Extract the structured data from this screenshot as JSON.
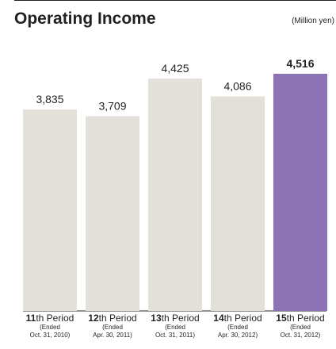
{
  "chart_data": {
    "type": "bar",
    "title": "Operating Income",
    "unit": "(Million yen)",
    "categories": [
      {
        "num": "11",
        "suffix": "th Period",
        "sub1": "(Ended",
        "sub2": "Oct. 31, 2010)"
      },
      {
        "num": "12",
        "suffix": "th Period",
        "sub1": "(Ended",
        "sub2": "Apr. 30, 2011)"
      },
      {
        "num": "13",
        "suffix": "th Period",
        "sub1": "(Ended",
        "sub2": "Oct. 31, 2011)"
      },
      {
        "num": "14",
        "suffix": "th Period",
        "sub1": "(Ended",
        "sub2": "Apr. 30, 2012)"
      },
      {
        "num": "15",
        "suffix": "th Period",
        "sub1": "(Ended",
        "sub2": "Oct. 31, 2012)"
      }
    ],
    "values": [
      3835,
      3709,
      4425,
      4086,
      4516
    ],
    "value_labels": [
      "3,835",
      "3,709",
      "4,425",
      "4,086",
      "4,516"
    ],
    "highlight_index": 4,
    "colors": {
      "bar": "#e3e0da",
      "highlight": "#8a72b5",
      "axis": "#231f20",
      "text": "#231f20"
    }
  }
}
